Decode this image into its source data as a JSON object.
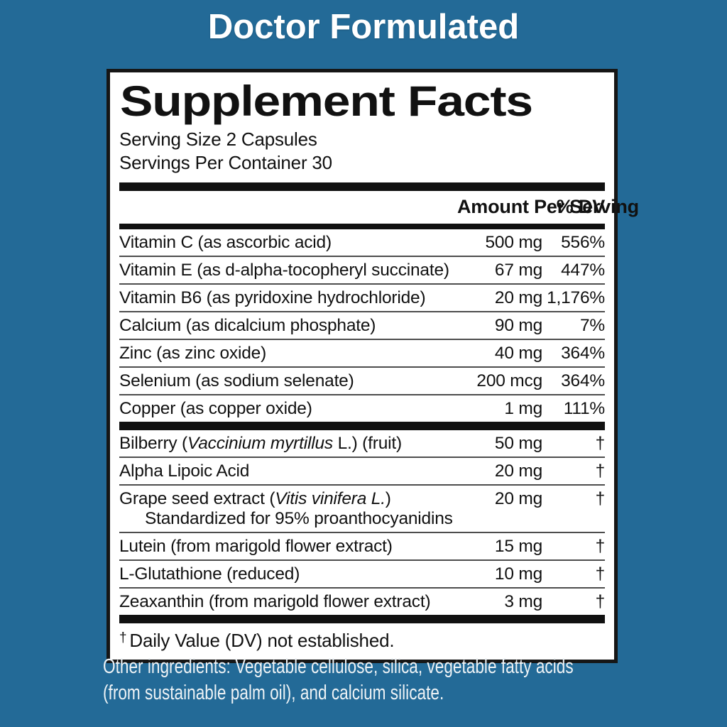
{
  "colors": {
    "background_blue": "#236a97",
    "panel_background": "#ffffff",
    "panel_border": "#161616",
    "text_black": "#111111",
    "hairline_gray": "#4d4d4d",
    "banner_text": "#ffffff",
    "other_ingredients_text": "#eef3f6"
  },
  "banner": {
    "title": "Doctor Formulated"
  },
  "panel": {
    "title": "Supplement Facts",
    "serving_size": "Serving Size 2 Capsules",
    "servings_per_container": "Servings Per Container 30",
    "header": {
      "amount": "Amount Per Serving",
      "dv": "% DV"
    },
    "nutrient_rows": [
      {
        "pre": "Vitamin C (as ascorbic acid)",
        "amount": "500 mg",
        "dv": "556%"
      },
      {
        "pre": "Vitamin E (as d-alpha-tocopheryl succinate)",
        "amount": "67 mg",
        "dv": "447%"
      },
      {
        "pre": "Vitamin B6 (as pyridoxine hydrochloride)",
        "amount": "20 mg",
        "dv": "1,176%"
      },
      {
        "pre": "Calcium (as dicalcium phosphate)",
        "amount": "90 mg",
        "dv": "7%"
      },
      {
        "pre": "Zinc (as zinc oxide)",
        "amount": "40 mg",
        "dv": "364%"
      },
      {
        "pre": "Selenium (as sodium selenate)",
        "amount": "200 mcg",
        "dv": "364%"
      },
      {
        "pre": "Copper (as copper oxide)",
        "amount": "1 mg",
        "dv": "111%"
      }
    ],
    "botanical_rows": [
      {
        "pre": "Bilberry (",
        "it": "Vaccinium myrtillus",
        "post": " L.) (fruit)",
        "amount": "50 mg",
        "dv": "†"
      },
      {
        "pre": "Alpha Lipoic Acid",
        "amount": "20 mg",
        "dv": "†"
      },
      {
        "pre": "Grape seed extract (",
        "it": "Vitis vinifera L.",
        "post": ")",
        "sub": "Standardized for 95% proanthocyanidins",
        "amount": "20 mg",
        "dv": "†"
      },
      {
        "pre": "Lutein (from marigold flower extract)",
        "amount": "15 mg",
        "dv": "†"
      },
      {
        "pre": "L-Glutathione (reduced)",
        "amount": "10 mg",
        "dv": "†"
      },
      {
        "pre": "Zeaxanthin (from marigold flower extract)",
        "amount": "3 mg",
        "dv": "†"
      }
    ],
    "footnote_symbol": "†",
    "footnote_text": "Daily Value (DV) not established."
  },
  "other_ingredients": {
    "line1": "Other ingredients: Vegetable cellulose, silica, vegetable fatty acids",
    "line2": "(from sustainable palm oil), and calcium silicate."
  }
}
